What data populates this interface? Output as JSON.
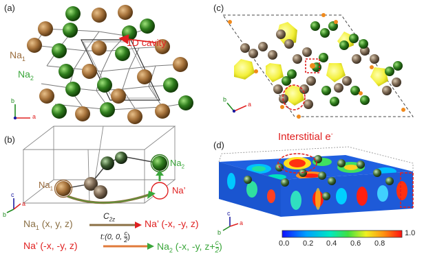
{
  "panels": {
    "a": {
      "label": "(a)",
      "cavity_label": "1D cavity",
      "na1": "Na",
      "na1_sub": "1",
      "na2": "Na",
      "na2_sub": "2",
      "axis_b": "b",
      "axis_a": "a"
    },
    "b": {
      "label": "(b)",
      "na1": "Na",
      "na1_sub": "1",
      "na2": "Na",
      "na2_sub": "2",
      "na_prime": "Na’",
      "axis_c": "c",
      "axis_b": "b",
      "axis_a": "a",
      "eq1_left": "Na",
      "eq1_left_sub": "1",
      "eq1_left_rest": " (x, y, z)",
      "eq1_op": "C",
      "eq1_op_sub": "2z",
      "eq1_right": "Na’ (-x, -y, z)",
      "eq2_left": "Na’ (-x, -y, z)",
      "eq2_op": "t:(0, 0, ",
      "eq2_op_num": "c",
      "eq2_op_den": "2",
      "eq2_op_close": ")",
      "eq2_right": "Na",
      "eq2_right_sub": "2",
      "eq2_right_rest": " (-x, -y, z+",
      "eq2_right_num": "c",
      "eq2_right_den": "2",
      "eq2_right_close": ")"
    },
    "c": {
      "label": "(c)",
      "axis_b": "b",
      "axis_a": "a"
    },
    "d": {
      "label": "(d)",
      "interstitial": "Interstitial e",
      "interstitial_sup": "-",
      "axis_c": "c",
      "axis_b": "b",
      "axis_a": "a",
      "colorbar_ticks": [
        "0.0",
        "0.2",
        "0.4",
        "0.6",
        "0.8",
        "1.0"
      ]
    }
  },
  "colors": {
    "na1": "#9a6b3c",
    "na2": "#2f7a1f",
    "red": "#e02020",
    "green_text": "#3aa63a",
    "yellow": "#ffff40",
    "orange": "#f08a1c",
    "gray": "#7d7d7d"
  }
}
